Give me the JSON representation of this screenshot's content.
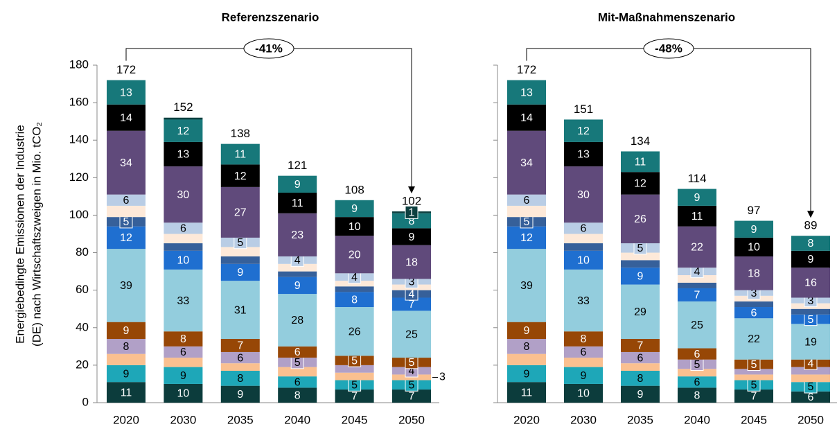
{
  "chart_data": [
    {
      "type": "stacked_bar",
      "title": "Referenzszenario",
      "annotation": "-41%",
      "ylabel": [
        "Energiebedingte Emissionen der Industrie",
        "(DE) nach Wirtschaftszweigen in Mio.  tCO₂"
      ],
      "categories": [
        "2020",
        "2030",
        "2035",
        "2040",
        "2045",
        "2050"
      ],
      "totals": [
        172,
        152,
        138,
        121,
        108,
        102
      ],
      "ylim": [
        0,
        180
      ],
      "yticks": [
        0,
        20,
        40,
        60,
        80,
        100,
        120,
        140,
        160,
        180
      ],
      "show_tick_labels": true,
      "series": [
        {
          "color": "#0c3c3c",
          "values": [
            11,
            10,
            9,
            8,
            7,
            7
          ],
          "value_labels": [
            "11",
            "10",
            "9",
            "8",
            "7",
            "7"
          ]
        },
        {
          "color": "#1ea7b8",
          "values": [
            9,
            9,
            8,
            6,
            5,
            5
          ],
          "value_labels": [
            "9",
            "9",
            "8",
            "6",
            "5",
            "5"
          ]
        },
        {
          "color": "#fac090",
          "values": [
            6,
            5,
            4,
            5,
            4,
            3
          ],
          "value_labels": [
            null,
            null,
            null,
            null,
            null,
            "3"
          ]
        },
        {
          "color": "#b1a0c7",
          "values": [
            8,
            6,
            6,
            5,
            4,
            4
          ],
          "value_labels": [
            "8",
            "6",
            "6",
            "5",
            null,
            "4"
          ]
        },
        {
          "color": "#974706",
          "values": [
            9,
            8,
            7,
            6,
            5,
            5
          ],
          "value_labels": [
            "9",
            "8",
            "7",
            "6",
            "5",
            "5"
          ]
        },
        {
          "color": "#93cddd",
          "values": [
            39,
            33,
            31,
            28,
            26,
            25
          ],
          "value_labels": [
            "39",
            "33",
            "31",
            "28",
            "26",
            "25"
          ]
        },
        {
          "color": "#1f6fd0",
          "values": [
            12,
            10,
            9,
            9,
            8,
            7
          ],
          "value_labels": [
            "12",
            "10",
            "9",
            "9",
            "8",
            "7"
          ]
        },
        {
          "color": "#36609a",
          "values": [
            5,
            4,
            4,
            3,
            3,
            4
          ],
          "value_labels": [
            "5",
            null,
            null,
            null,
            null,
            "4"
          ]
        },
        {
          "color": "#fde9d9",
          "values": [
            6,
            5,
            5,
            4,
            3,
            3
          ],
          "value_labels": [
            null,
            null,
            null,
            null,
            null,
            null
          ]
        },
        {
          "color": "#b9cde5",
          "values": [
            6,
            6,
            5,
            4,
            4,
            3
          ],
          "value_labels": [
            "6",
            "6",
            "5",
            "4",
            "4",
            "3"
          ]
        },
        {
          "color": "#604a7b",
          "values": [
            34,
            30,
            27,
            23,
            20,
            18
          ],
          "value_labels": [
            "34",
            "30",
            "27",
            "23",
            "20",
            "18"
          ]
        },
        {
          "color": "#000000",
          "values": [
            14,
            13,
            12,
            11,
            10,
            9
          ],
          "value_labels": [
            "14",
            "13",
            "12",
            "11",
            "10",
            "9"
          ]
        },
        {
          "color": "#17787a",
          "values": [
            13,
            12,
            11,
            9,
            9,
            8
          ],
          "value_labels": [
            "13",
            "12",
            "11",
            "9",
            "9",
            "8"
          ]
        },
        {
          "color": "#0d4040",
          "values": [
            0,
            1,
            0,
            0,
            0,
            1
          ],
          "value_labels": [
            null,
            null,
            null,
            null,
            null,
            "1"
          ]
        }
      ]
    },
    {
      "type": "stacked_bar",
      "title": "Mit-Maßnahmenszenario",
      "annotation": "-48%",
      "categories": [
        "2020",
        "2030",
        "2035",
        "2040",
        "2045",
        "2050"
      ],
      "totals": [
        172,
        151,
        134,
        114,
        97,
        89
      ],
      "ylim": [
        0,
        180
      ],
      "yticks": [
        0,
        20,
        40,
        60,
        80,
        100,
        120,
        140,
        160,
        180
      ],
      "show_tick_labels": false,
      "series": [
        {
          "color": "#0c3c3c",
          "values": [
            11,
            10,
            9,
            8,
            7,
            6
          ],
          "value_labels": [
            "11",
            "10",
            "9",
            "8",
            "7",
            "6"
          ]
        },
        {
          "color": "#1ea7b8",
          "values": [
            9,
            9,
            8,
            6,
            5,
            5
          ],
          "value_labels": [
            "9",
            "9",
            "8",
            "6",
            "5",
            "5"
          ]
        },
        {
          "color": "#fac090",
          "values": [
            6,
            5,
            4,
            4,
            3,
            4
          ],
          "value_labels": [
            null,
            null,
            null,
            null,
            null,
            null
          ]
        },
        {
          "color": "#b1a0c7",
          "values": [
            8,
            6,
            6,
            5,
            3,
            4
          ],
          "value_labels": [
            "8",
            "6",
            "6",
            "5",
            null,
            null
          ]
        },
        {
          "color": "#974706",
          "values": [
            9,
            8,
            7,
            6,
            5,
            4
          ],
          "value_labels": [
            "9",
            "8",
            "7",
            "6",
            "5",
            "4"
          ]
        },
        {
          "color": "#93cddd",
          "values": [
            39,
            33,
            29,
            25,
            22,
            19
          ],
          "value_labels": [
            "39",
            "33",
            "29",
            "25",
            "22",
            "19"
          ]
        },
        {
          "color": "#1f6fd0",
          "values": [
            12,
            10,
            9,
            7,
            6,
            5
          ],
          "value_labels": [
            "12",
            "10",
            "9",
            "7",
            "6",
            "5"
          ]
        },
        {
          "color": "#36609a",
          "values": [
            5,
            4,
            4,
            3,
            3,
            3
          ],
          "value_labels": [
            "5",
            null,
            null,
            null,
            null,
            null
          ]
        },
        {
          "color": "#fde9d9",
          "values": [
            6,
            5,
            4,
            4,
            3,
            3
          ],
          "value_labels": [
            null,
            null,
            null,
            null,
            null,
            null
          ]
        },
        {
          "color": "#b9cde5",
          "values": [
            6,
            6,
            5,
            4,
            3,
            3
          ],
          "value_labels": [
            "6",
            "6",
            "5",
            "4",
            "3",
            "3"
          ]
        },
        {
          "color": "#604a7b",
          "values": [
            34,
            30,
            26,
            22,
            18,
            16
          ],
          "value_labels": [
            "34",
            "30",
            "26",
            "22",
            "18",
            "16"
          ]
        },
        {
          "color": "#000000",
          "values": [
            14,
            13,
            12,
            11,
            10,
            9
          ],
          "value_labels": [
            "14",
            "13",
            "12",
            "11",
            "10",
            "9"
          ]
        },
        {
          "color": "#17787a",
          "values": [
            13,
            12,
            11,
            9,
            9,
            8
          ],
          "value_labels": [
            "13",
            "12",
            "11",
            "9",
            "9",
            "8"
          ]
        }
      ]
    }
  ]
}
